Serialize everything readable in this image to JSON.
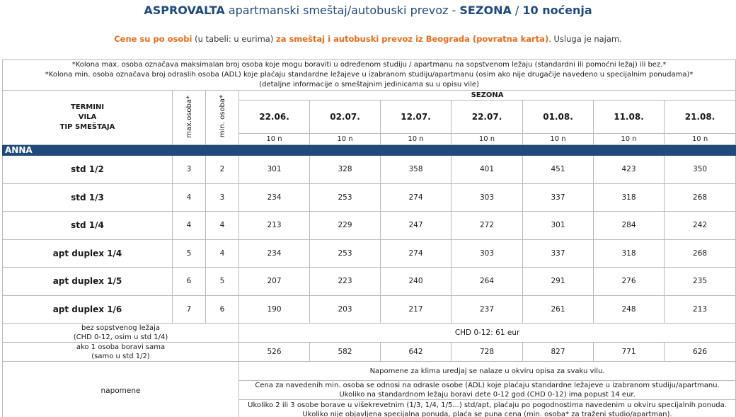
{
  "title": {
    "bold1": "ASPROVALTA",
    "normal": " apartmanski smeštaj/autobuski prevoz - ",
    "bold2": "SEZONA",
    "sep": " / ",
    "bold3": "10 noćenja"
  },
  "subtitle": {
    "part1": "Cene su po osobi",
    "part2": " (u tabeli: u eurima) ",
    "part3": "za smeštaj i autobuski prevoz iz Beograda (povratna karta)",
    "part4": ". Usluga je najam."
  },
  "notes_top": [
    "*Kolona max. osoba označava maksimalan broj osoba koje mogu boraviti u određenom studiju / apartmanu na sopstvenom ležaju (standardni ili pomoćni ležaj) ili bez.*",
    "*Kolona min. osoba označava broj odraslih osoba (ADL) koje plaćaju standardne ležajeve u izabranom studiju/apartmanu (osim ako nije drugačije navedeno u specijalnim ponudama)*",
    "(detaljne informacije o smeštajnim jedinicama su u opisu vile)"
  ],
  "header": {
    "left_line1": "TERMINI",
    "left_line2": "VILA",
    "left_line3": "TIP SMEŠTAJA",
    "max_label": "max.osoba*",
    "min_label": "min. osoba*",
    "season": "SEZONA",
    "dates": [
      "22.06.",
      "02.07.",
      "12.07.",
      "22.07.",
      "01.08.",
      "11.08.",
      "21.08."
    ],
    "nights": [
      "10 n",
      "10 n",
      "10 n",
      "10 n",
      "10 n",
      "10 n",
      "10 n"
    ]
  },
  "villa": "ANNA",
  "rows": [
    {
      "type": "std 1/2",
      "max": "3",
      "min": "2",
      "prices": [
        "301",
        "328",
        "358",
        "401",
        "451",
        "423",
        "350"
      ]
    },
    {
      "type": "std 1/3",
      "max": "4",
      "min": "3",
      "prices": [
        "234",
        "253",
        "274",
        "303",
        "337",
        "318",
        "268"
      ]
    },
    {
      "type": "std 1/4",
      "max": "4",
      "min": "4",
      "prices": [
        "213",
        "229",
        "247",
        "272",
        "301",
        "284",
        "242"
      ]
    },
    {
      "type": "apt duplex 1/4",
      "max": "5",
      "min": "4",
      "prices": [
        "234",
        "253",
        "274",
        "303",
        "337",
        "318",
        "268"
      ]
    },
    {
      "type": "apt duplex 1/5",
      "max": "6",
      "min": "5",
      "prices": [
        "207",
        "223",
        "240",
        "264",
        "291",
        "276",
        "235"
      ]
    },
    {
      "type": "apt duplex 1/6",
      "max": "7",
      "min": "6",
      "prices": [
        "190",
        "203",
        "217",
        "237",
        "261",
        "248",
        "213"
      ]
    }
  ],
  "extra": {
    "no_bed_line1": "bez sopstvenog ležaja",
    "no_bed_line2": "(CHD 0-12, osim u std 1/4)",
    "no_bed_value": "CHD 0-12: 61 eur",
    "alone_line1": "ako 1 osoba boravi sama",
    "alone_line2": "(samo u std 1/2)",
    "alone_prices": [
      "526",
      "582",
      "642",
      "728",
      "827",
      "771",
      "626"
    ]
  },
  "napomene": {
    "label": "napomene",
    "note1": "Napomene za klima uredjaj se nalaze u okviru opisa za svaku vilu.",
    "note2_line1": "Cena za  navedenih min. osoba se odnosi na odrasle osobe (ADL) koje plaćaju standardne ležajeve u izabranom studiju/apartmanu.",
    "note2_line2": "Ukoliko na standardnom ležaju boravi dete 0-12 god (CHD 0-12) ima popust 14 eur.",
    "note3_line1": "Ukoliko 2 ili 3 osobe borave u višekrevetnim (1/3, 1/4, 1/5...) std/apt, plaćaju po pogodnostima navedenim u okviru specijalnih ponuda.",
    "note3_line2": "Ukoliko nije objavljena specijalna ponuda, plaća se puna cena (min. osoba* za traženi studio/apartman)."
  }
}
